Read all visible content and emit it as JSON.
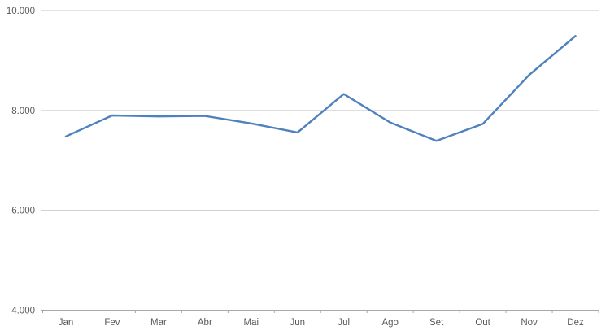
{
  "chart": {
    "background_color": "#ffffff",
    "label_color": "#595959",
    "gridline_color": "#c9c9c9",
    "axis_color": "#a9a9a9"
  },
  "chart_data": {
    "type": "line",
    "title": "",
    "xlabel": "",
    "ylabel": "",
    "categories": [
      "Jan",
      "Fev",
      "Mar",
      "Abr",
      "Mai",
      "Jun",
      "Jul",
      "Ago",
      "Set",
      "Out",
      "Nov",
      "Dez"
    ],
    "values": [
      7480,
      7900,
      7880,
      7890,
      7740,
      7560,
      8330,
      7760,
      7390,
      7730,
      8710,
      9490
    ],
    "line_color": "#4F81BD",
    "line_width": 2.4,
    "ylim": [
      4000,
      10000
    ],
    "yticks": [
      {
        "value": 10000,
        "label": "10.000"
      },
      {
        "value": 8000,
        "label": "8.000"
      },
      {
        "value": 6000,
        "label": "6.000"
      },
      {
        "value": 4000,
        "label": "4.000"
      }
    ],
    "grid": "horizontal-major",
    "legend": "none",
    "markers": "none"
  }
}
